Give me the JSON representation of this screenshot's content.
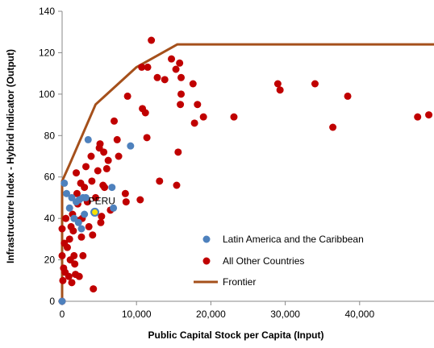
{
  "chart_data": {
    "type": "scatter",
    "title": "",
    "xlabel": "Public Capital Stock per Capita (Input)",
    "ylabel": "Infrastructure Index - Hybrid Indicator (Output)",
    "xlim": [
      0,
      50000
    ],
    "ylim": [
      0,
      140
    ],
    "xticks": [
      0,
      10000,
      20000,
      30000,
      40000
    ],
    "xtick_labels": [
      "0",
      "10,000",
      "20,000",
      "30,000",
      "40,000"
    ],
    "yticks": [
      0,
      20,
      40,
      60,
      80,
      100,
      120,
      140
    ],
    "ytick_labels": [
      "0",
      "20",
      "40",
      "60",
      "80",
      "100",
      "120",
      "140"
    ],
    "grid": false,
    "legend": "bottom-right",
    "annotations": [
      {
        "text": "PERU",
        "x": 4400,
        "y": 43
      }
    ],
    "colors": {
      "latam": "#4e81bd",
      "others": "#c00000",
      "frontier": "#a5501b",
      "peru": "#f6e000"
    },
    "series": [
      {
        "name": "Latin America and the Caribbean",
        "type": "scatter",
        "points": [
          [
            0,
            0
          ],
          [
            300,
            57
          ],
          [
            600,
            52
          ],
          [
            1000,
            45
          ],
          [
            1300,
            50
          ],
          [
            1600,
            40
          ],
          [
            1900,
            48
          ],
          [
            2300,
            49
          ],
          [
            2600,
            35
          ],
          [
            2800,
            50
          ],
          [
            3000,
            42
          ],
          [
            3200,
            50
          ],
          [
            3500,
            78
          ],
          [
            4400,
            43
          ],
          [
            6700,
            55
          ],
          [
            6900,
            45
          ],
          [
            9200,
            75
          ],
          [
            2200,
            38
          ]
        ]
      },
      {
        "name": "All Other Countries",
        "type": "scatter",
        "points": [
          [
            0,
            0
          ],
          [
            0,
            35
          ],
          [
            0,
            22
          ],
          [
            100,
            10
          ],
          [
            200,
            16
          ],
          [
            300,
            28
          ],
          [
            400,
            14
          ],
          [
            500,
            40
          ],
          [
            700,
            26
          ],
          [
            900,
            12
          ],
          [
            1000,
            30
          ],
          [
            1100,
            20
          ],
          [
            1200,
            36
          ],
          [
            1300,
            9
          ],
          [
            1400,
            42
          ],
          [
            1500,
            34
          ],
          [
            1600,
            22
          ],
          [
            1700,
            18
          ],
          [
            1800,
            13
          ],
          [
            1900,
            62
          ],
          [
            2000,
            52
          ],
          [
            2100,
            47
          ],
          [
            2200,
            39
          ],
          [
            2300,
            12
          ],
          [
            2500,
            57
          ],
          [
            2600,
            31
          ],
          [
            2700,
            40
          ],
          [
            2800,
            22
          ],
          [
            3000,
            55
          ],
          [
            3200,
            65
          ],
          [
            3400,
            48
          ],
          [
            3600,
            36
          ],
          [
            3900,
            70
          ],
          [
            4000,
            58
          ],
          [
            4100,
            32
          ],
          [
            4200,
            6
          ],
          [
            4500,
            50
          ],
          [
            4800,
            63
          ],
          [
            5000,
            74
          ],
          [
            5100,
            76
          ],
          [
            5200,
            38
          ],
          [
            5300,
            41
          ],
          [
            5500,
            56
          ],
          [
            5600,
            72
          ],
          [
            5700,
            55
          ],
          [
            6000,
            64
          ],
          [
            6200,
            68
          ],
          [
            6500,
            44
          ],
          [
            7000,
            87
          ],
          [
            7400,
            78
          ],
          [
            7600,
            70
          ],
          [
            8500,
            52
          ],
          [
            8600,
            48
          ],
          [
            8800,
            99
          ],
          [
            10500,
            49
          ],
          [
            10700,
            113
          ],
          [
            10800,
            93
          ],
          [
            11200,
            91
          ],
          [
            11400,
            79
          ],
          [
            11500,
            113
          ],
          [
            12000,
            126
          ],
          [
            12800,
            108
          ],
          [
            13100,
            58
          ],
          [
            13800,
            107
          ],
          [
            14700,
            117
          ],
          [
            15300,
            112
          ],
          [
            15400,
            56
          ],
          [
            15600,
            72
          ],
          [
            15800,
            115
          ],
          [
            15900,
            95
          ],
          [
            16000,
            100
          ],
          [
            16000,
            108
          ],
          [
            17600,
            105
          ],
          [
            17800,
            86
          ],
          [
            18200,
            95
          ],
          [
            19000,
            89
          ],
          [
            23100,
            89
          ],
          [
            29000,
            105
          ],
          [
            29300,
            102
          ],
          [
            34000,
            105
          ],
          [
            36400,
            84
          ],
          [
            38400,
            99
          ],
          [
            47800,
            89
          ],
          [
            49300,
            90
          ]
        ]
      },
      {
        "name": "Frontier",
        "type": "line",
        "points": [
          [
            0,
            0
          ],
          [
            0,
            58
          ],
          [
            1000,
            66
          ],
          [
            4500,
            95
          ],
          [
            10000,
            113
          ],
          [
            15500,
            124
          ],
          [
            50000,
            124
          ]
        ]
      }
    ]
  }
}
